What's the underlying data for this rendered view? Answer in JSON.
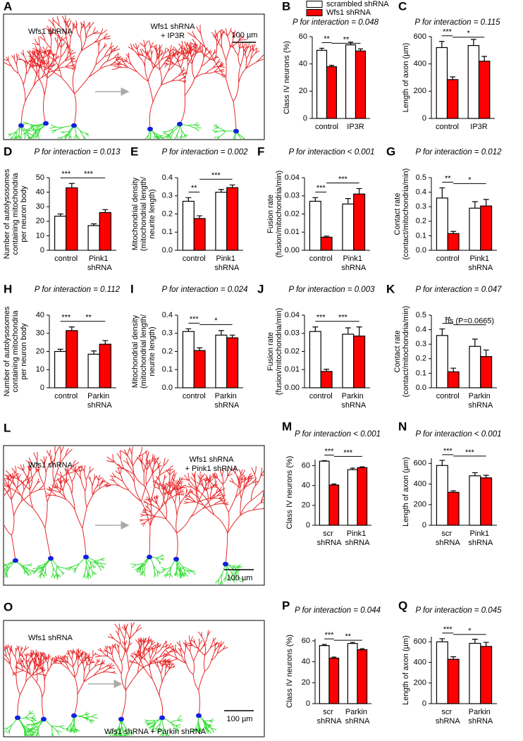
{
  "images": [
    {
      "letter": "A",
      "labels": [
        [
          "Wfs1 shRNA"
        ],
        [
          "Wfs1 shRNA",
          "+ IP3R"
        ]
      ],
      "scale": "100 µm"
    },
    {
      "letter": "L",
      "labels": [
        [
          "Wfs1 shRNA"
        ],
        [
          "Wfs1 shRNA",
          "+ Pink1 shRNA"
        ]
      ],
      "scale": "100 µm"
    },
    {
      "letter": "O",
      "labels": [
        [
          "Wfs1 shRNA"
        ],
        [
          "Wfs1 shRNA + Parkin shRNA"
        ]
      ],
      "scale": "100 µm"
    }
  ],
  "chart_data": [
    {
      "type": "bar",
      "letter": "B",
      "title": "P for interaction = 0.048",
      "ylabel": [
        "Class IV neurons (%)"
      ],
      "categories": [
        "control",
        "IP3R"
      ],
      "series": [
        {
          "name": "scrambled shRNA",
          "color": "#ffffff",
          "values": [
            50,
            54
          ],
          "errors": [
            1.5,
            2
          ]
        },
        {
          "name": "Wfs1 shRNA",
          "color": "#ff0000",
          "values": [
            38,
            49.5
          ],
          "errors": [
            1,
            1.5
          ]
        }
      ],
      "ylim": [
        0,
        60
      ],
      "yticks": [
        0,
        20,
        40,
        60
      ],
      "annotations": [
        "**",
        "**"
      ]
    },
    {
      "type": "bar",
      "letter": "C",
      "title": "P for interaction = 0.115",
      "ylabel": [
        "Length of axon (µm)"
      ],
      "categories": [
        "control",
        "IP3R"
      ],
      "series": [
        {
          "color": "#ffffff",
          "values": [
            520,
            535
          ],
          "errors": [
            45,
            45
          ]
        },
        {
          "color": "#ff0000",
          "values": [
            285,
            420
          ],
          "errors": [
            20,
            35
          ]
        }
      ],
      "ylim": [
        0,
        600
      ],
      "yticks": [
        0,
        200,
        400,
        600
      ],
      "annotations": [
        "***",
        "*"
      ]
    },
    {
      "type": "bar",
      "letter": "D",
      "title": "P for interaction = 0.013",
      "ylabel": [
        "Number of  autolysosomes",
        "containing mitochondria",
        "per neuron body"
      ],
      "categories": [
        "control",
        "Pink1 shRNA"
      ],
      "series": [
        {
          "color": "#ffffff",
          "values": [
            23.5,
            17
          ],
          "errors": [
            1.5,
            1.2
          ]
        },
        {
          "color": "#ff0000",
          "values": [
            43,
            26
          ],
          "errors": [
            3,
            2
          ]
        }
      ],
      "ylim": [
        0,
        50
      ],
      "yticks": [
        0,
        10,
        20,
        30,
        40,
        50
      ],
      "annotations": [
        "***",
        "***"
      ]
    },
    {
      "type": "bar",
      "letter": "E",
      "title": "P for interaction = 0.002",
      "ylabel": [
        "Mitochondrial density",
        "(mitochondrial length/",
        "neurite length)"
      ],
      "categories": [
        "control",
        "Pink1 shRNA"
      ],
      "series": [
        {
          "color": "#ffffff",
          "values": [
            0.27,
            0.32
          ],
          "errors": [
            0.02,
            0.015
          ]
        },
        {
          "color": "#ff0000",
          "values": [
            0.175,
            0.345
          ],
          "errors": [
            0.015,
            0.015
          ]
        }
      ],
      "ylim": [
        0,
        0.4
      ],
      "yticks": [
        {
          "value": 0,
          "label": "0.0"
        },
        0.1,
        0.2,
        0.3,
        0.4
      ],
      "annotations": [
        "**",
        "***"
      ]
    },
    {
      "type": "bar",
      "letter": "F",
      "title": "P for interaction < 0.001",
      "ylabel": [
        "Fusion rate",
        "(fusion/mitochondria/min)"
      ],
      "categories": [
        "control",
        "Pink1 shRNA"
      ],
      "series": [
        {
          "color": "#ffffff",
          "values": [
            0.027,
            0.0255
          ],
          "errors": [
            0.002,
            0.003
          ]
        },
        {
          "color": "#ff0000",
          "values": [
            0.0072,
            0.031
          ],
          "errors": [
            0.0006,
            0.003
          ]
        }
      ],
      "ylim": [
        0,
        0.04
      ],
      "yticks": [
        {
          "value": 0,
          "label": "0.00"
        },
        0.01,
        0.02,
        0.03,
        0.04
      ],
      "annotations": [
        "***",
        "***"
      ]
    },
    {
      "type": "bar",
      "letter": "G",
      "title": "P for interaction = 0.012",
      "ylabel": [
        "Contact rate",
        "(contact/mitochondria/min)"
      ],
      "categories": [
        "control",
        "Pink1 shRNA"
      ],
      "series": [
        {
          "color": "#ffffff",
          "values": [
            0.36,
            0.29
          ],
          "errors": [
            0.07,
            0.045
          ]
        },
        {
          "color": "#ff0000",
          "values": [
            0.115,
            0.305
          ],
          "errors": [
            0.015,
            0.045
          ]
        }
      ],
      "ylim": [
        0,
        0.5
      ],
      "yticks": [
        {
          "value": 0,
          "label": "0.0"
        },
        0.1,
        0.2,
        0.3,
        0.4,
        0.5
      ],
      "annotations": [
        "**",
        "*"
      ]
    },
    {
      "type": "bar",
      "letter": "H",
      "title": "P for interaction = 0.112",
      "ylabel": [
        "Number of  autolysosomes",
        "containing mitochondria",
        "per neuron body"
      ],
      "categories": [
        "control",
        "Parkin shRNA"
      ],
      "series": [
        {
          "color": "#ffffff",
          "values": [
            20,
            18.5
          ],
          "errors": [
            1.2,
            1.8
          ]
        },
        {
          "color": "#ff0000",
          "values": [
            31.5,
            24
          ],
          "errors": [
            2,
            2
          ]
        }
      ],
      "ylim": [
        0,
        40
      ],
      "yticks": [
        0,
        10,
        20,
        30,
        40
      ],
      "annotations": [
        "***",
        "**"
      ]
    },
    {
      "type": "bar",
      "letter": "I",
      "title": "P for interaction = 0.024",
      "ylabel": [
        "Mitochondrial density",
        "(mitochondrial length/",
        "neurite length)"
      ],
      "categories": [
        "control",
        "Parkin shRNA"
      ],
      "series": [
        {
          "color": "#ffffff",
          "values": [
            0.31,
            0.29
          ],
          "errors": [
            0.015,
            0.025
          ]
        },
        {
          "color": "#ff0000",
          "values": [
            0.205,
            0.275
          ],
          "errors": [
            0.015,
            0.015
          ]
        }
      ],
      "ylim": [
        0,
        0.4
      ],
      "yticks": [
        {
          "value": 0,
          "label": "0.0"
        },
        0.1,
        0.2,
        0.3,
        0.4
      ],
      "annotations": [
        "***",
        "*"
      ]
    },
    {
      "type": "bar",
      "letter": "J",
      "title": "P for interaction = 0.003",
      "ylabel": [
        "Fusion rate",
        "(fusion/mitochondria/min)"
      ],
      "categories": [
        "control",
        "Parkin shRNA"
      ],
      "series": [
        {
          "color": "#ffffff",
          "values": [
            0.031,
            0.0295
          ],
          "errors": [
            0.0025,
            0.0035
          ]
        },
        {
          "color": "#ff0000",
          "values": [
            0.009,
            0.0285
          ],
          "errors": [
            0.0012,
            0.005
          ]
        }
      ],
      "ylim": [
        0,
        0.04
      ],
      "yticks": [
        {
          "value": 0,
          "label": "0.00"
        },
        0.01,
        0.02,
        0.03,
        0.04
      ],
      "annotations": [
        "***",
        "***"
      ]
    },
    {
      "type": "bar",
      "letter": "K",
      "title": "P for interaction = 0.047",
      "ylabel": [
        "Contact rate",
        "(contact/mitochondria/min)"
      ],
      "categories": [
        "control",
        "Parkin shRNA"
      ],
      "series": [
        {
          "color": "#ffffff",
          "values": [
            0.36,
            0.285
          ],
          "errors": [
            0.045,
            0.05
          ]
        },
        {
          "color": "#ff0000",
          "values": [
            0.11,
            0.215
          ],
          "errors": [
            0.025,
            0.045
          ]
        }
      ],
      "ylim": [
        0,
        0.5
      ],
      "yticks": [
        {
          "value": 0,
          "label": "0.0"
        },
        0.1,
        0.2,
        0.3,
        0.4,
        0.5
      ],
      "annotations": [
        "**",
        "ns (P=0.0665)"
      ]
    },
    {
      "type": "bar",
      "letter": "M",
      "title": "P for interaction < 0.001",
      "ylabel": [
        "Class IV neurons (%)"
      ],
      "categories": [
        "scr shRNA",
        "Pink1 shRNA"
      ],
      "series": [
        {
          "color": "#ffffff",
          "values": [
            64.5,
            56
          ],
          "errors": [
            0.5,
            1.5
          ]
        },
        {
          "color": "#ff0000",
          "values": [
            40.5,
            58
          ],
          "errors": [
            1,
            0.8
          ]
        }
      ],
      "ylim": [
        0,
        66
      ],
      "yticks": [
        0,
        20,
        40,
        60
      ],
      "annotations": [
        "***",
        "***"
      ]
    },
    {
      "type": "bar",
      "letter": "N",
      "title": "P for interaction < 0.001",
      "ylabel": [
        "Length of axon (µm)"
      ],
      "categories": [
        "scr shRNA",
        "Pink1 shRNA"
      ],
      "series": [
        {
          "color": "#ffffff",
          "values": [
            580,
            480
          ],
          "errors": [
            50,
            30
          ]
        },
        {
          "color": "#ff0000",
          "values": [
            320,
            460
          ],
          "errors": [
            15,
            25
          ]
        }
      ],
      "ylim": [
        0,
        650
      ],
      "yticks": [
        0,
        200,
        400,
        600
      ],
      "annotations": [
        "***",
        "***"
      ]
    },
    {
      "type": "bar",
      "letter": "P",
      "title": "P for interaction = 0.044",
      "ylabel": [
        "Class IV neurons (%)"
      ],
      "categories": [
        "scr shRNA",
        "Parkin shRNA"
      ],
      "series": [
        {
          "color": "#ffffff",
          "values": [
            55.5,
            57.5
          ],
          "errors": [
            1,
            1
          ]
        },
        {
          "color": "#ff0000",
          "values": [
            43.5,
            51.5
          ],
          "errors": [
            1,
            1
          ]
        }
      ],
      "ylim": [
        0,
        62
      ],
      "yticks": [
        0,
        20,
        40,
        60
      ],
      "annotations": [
        "***",
        "**"
      ]
    },
    {
      "type": "bar",
      "letter": "Q",
      "title": "P for interaction = 0.045",
      "ylabel": [
        "Length of  axon (µm)"
      ],
      "categories": [
        "scr shRNA",
        "Parkin shRNA"
      ],
      "series": [
        {
          "color": "#ffffff",
          "values": [
            600,
            585
          ],
          "errors": [
            30,
            40
          ]
        },
        {
          "color": "#ff0000",
          "values": [
            430,
            555
          ],
          "errors": [
            25,
            40
          ]
        }
      ],
      "ylim": [
        0,
        650
      ],
      "yticks": [
        0,
        200,
        400,
        600
      ],
      "annotations": [
        "***",
        "*"
      ]
    }
  ]
}
